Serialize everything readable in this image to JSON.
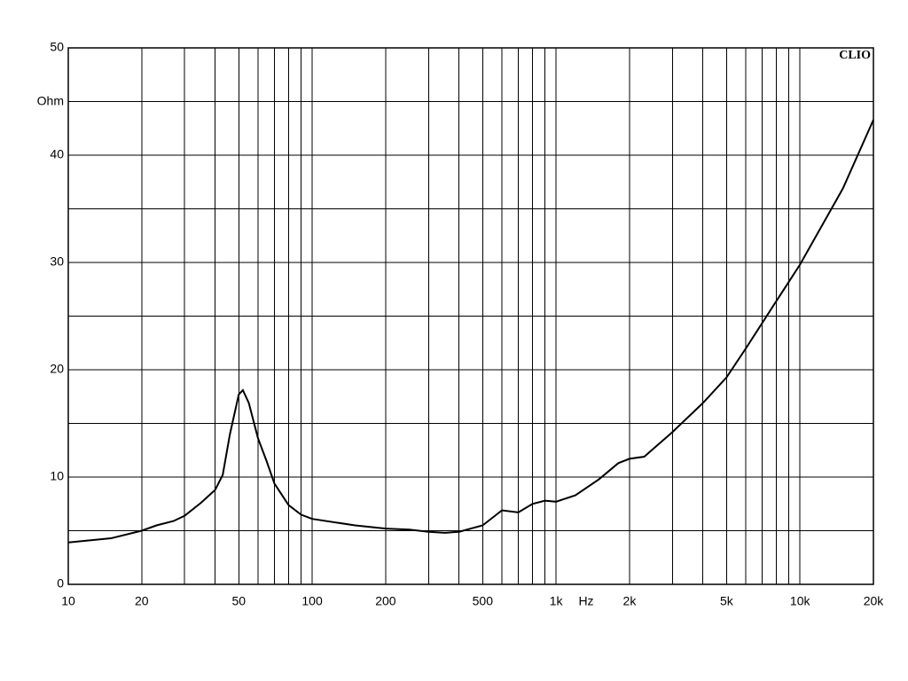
{
  "chart_data": {
    "type": "line",
    "brand": "CLIO",
    "ylabel": "Ohm",
    "xlabel": "Hz",
    "xscale": "log",
    "grid": true,
    "color": "#000000",
    "xlim": [
      10,
      20000
    ],
    "ylim": [
      0,
      50
    ],
    "xticks": [
      10,
      20,
      50,
      100,
      200,
      500,
      {
        "value": 1000,
        "label": "1k"
      },
      {
        "value": 2000,
        "label": "2k"
      },
      {
        "value": 5000,
        "label": "5k"
      },
      {
        "value": 10000,
        "label": "10k"
      },
      {
        "value": 20000,
        "label": "20k"
      }
    ],
    "xminor": [
      30,
      40,
      60,
      70,
      80,
      90,
      300,
      400,
      600,
      700,
      800,
      900,
      3000,
      4000,
      6000,
      7000,
      8000,
      9000
    ],
    "yticks": [
      0,
      10,
      20,
      30,
      40,
      50
    ],
    "yminor": [
      5,
      15,
      25,
      35,
      45
    ],
    "x": [
      10,
      15,
      20,
      23,
      27,
      30,
      35,
      40,
      43,
      46,
      50,
      52,
      55,
      60,
      65,
      70,
      80,
      90,
      100,
      150,
      200,
      250,
      300,
      350,
      400,
      500,
      600,
      700,
      800,
      900,
      1000,
      1200,
      1500,
      1800,
      2000,
      2300,
      3000,
      4000,
      5000,
      6000,
      8000,
      10000,
      15000,
      20000
    ],
    "values": [
      3.9,
      4.3,
      5.0,
      5.5,
      5.9,
      6.4,
      7.6,
      8.8,
      10.2,
      14,
      17.7,
      18.1,
      16.9,
      13.6,
      11.5,
      9.4,
      7.4,
      6.5,
      6.1,
      5.5,
      5.2,
      5.1,
      4.9,
      4.8,
      4.9,
      5.5,
      6.9,
      6.7,
      7.5,
      7.8,
      7.7,
      8.3,
      9.8,
      11.3,
      11.7,
      11.9,
      14.2,
      16.9,
      19.3,
      22,
      26.4,
      29.8,
      36.9,
      43.3
    ]
  }
}
